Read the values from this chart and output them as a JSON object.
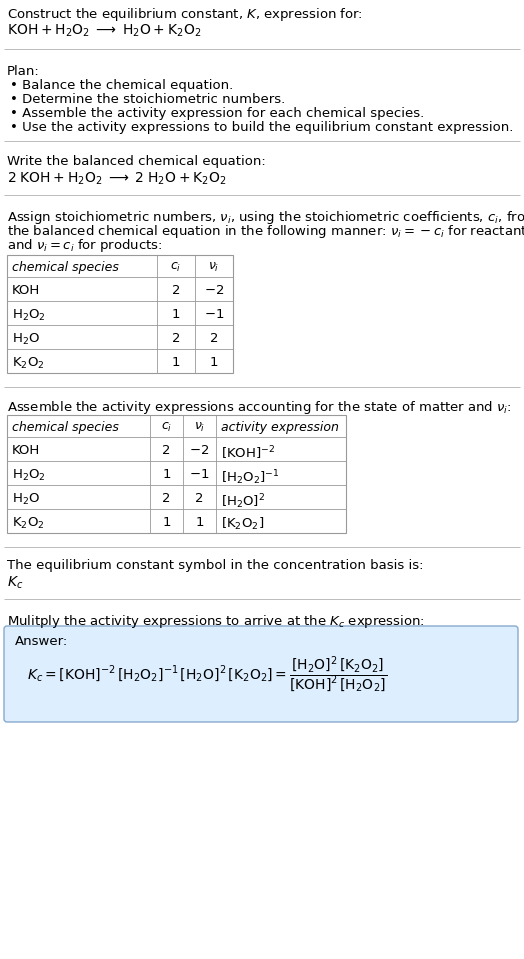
{
  "bg_color": "#ffffff",
  "table_border_color": "#999999",
  "answer_box_facecolor": "#ddeeff",
  "answer_box_edgecolor": "#88aacc",
  "separator_color": "#bbbbbb",
  "text_color": "#000000",
  "font_size": 9.5,
  "sections": {
    "title": {
      "line1": "Construct the equilibrium constant, $K$, expression for:",
      "line2": "$\\mathrm{KOH + H_2O_2 \\;\\longrightarrow\\; H_2O + K_2O_2}$"
    },
    "plan": {
      "header": "Plan:",
      "items": [
        "\\bullet\\; Balance the chemical equation.",
        "\\bullet\\; Determine the stoichiometric numbers.",
        "\\bullet\\; Assemble the activity expression for each chemical species.",
        "\\bullet\\; Use the activity expressions to build the equilibrium constant expression."
      ]
    },
    "balanced": {
      "header": "Write the balanced chemical equation:",
      "eq": "$\\mathrm{2\\; KOH + H_2O_2 \\;\\longrightarrow\\; 2\\; H_2O + K_2O_2}$"
    },
    "stoich_text": "Assign stoichiometric numbers, $\\nu_i$, using the stoichiometric coefficients, $c_i$, from\nthe balanced chemical equation in the following manner: $\\nu_i = -c_i$ for reactants\nand $\\nu_i = c_i$ for products:",
    "table1": {
      "headers": [
        "chemical species",
        "$c_i$",
        "$\\nu_i$"
      ],
      "rows": [
        [
          "KOH",
          "2",
          "$-2$"
        ],
        [
          "$\\mathrm{H_2O_2}$",
          "1",
          "$-1$"
        ],
        [
          "$\\mathrm{H_2O}$",
          "2",
          "2"
        ],
        [
          "$\\mathrm{K_2O_2}$",
          "1",
          "1"
        ]
      ]
    },
    "activity_text": "Assemble the activity expressions accounting for the state of matter and $\\nu_i$:",
    "table2": {
      "headers": [
        "chemical species",
        "$c_i$",
        "$\\nu_i$",
        "activity expression"
      ],
      "rows": [
        [
          "KOH",
          "2",
          "$-2$",
          "$[\\mathrm{KOH}]^{-2}$"
        ],
        [
          "$\\mathrm{H_2O_2}$",
          "1",
          "$-1$",
          "$[\\mathrm{H_2O_2}]^{-1}$"
        ],
        [
          "$\\mathrm{H_2O}$",
          "2",
          "2",
          "$[\\mathrm{H_2O}]^2$"
        ],
        [
          "$\\mathrm{K_2O_2}$",
          "1",
          "1",
          "$[\\mathrm{K_2O_2}]$"
        ]
      ]
    },
    "kc_header": "The equilibrium constant symbol in the concentration basis is:",
    "kc_symbol": "$K_c$",
    "multiply_header": "Mulitply the activity expressions to arrive at the $K_c$ expression:",
    "answer_label": "Answer:",
    "answer_eq": "$K_c = [\\mathrm{KOH}]^{-2}\\,[\\mathrm{H_2O_2}]^{-1}\\,[\\mathrm{H_2O}]^2\\,[\\mathrm{K_2O_2}] = \\dfrac{[\\mathrm{H_2O}]^2\\,[\\mathrm{K_2O_2}]}{[\\mathrm{KOH}]^2\\,[\\mathrm{H_2O_2}]}$"
  }
}
